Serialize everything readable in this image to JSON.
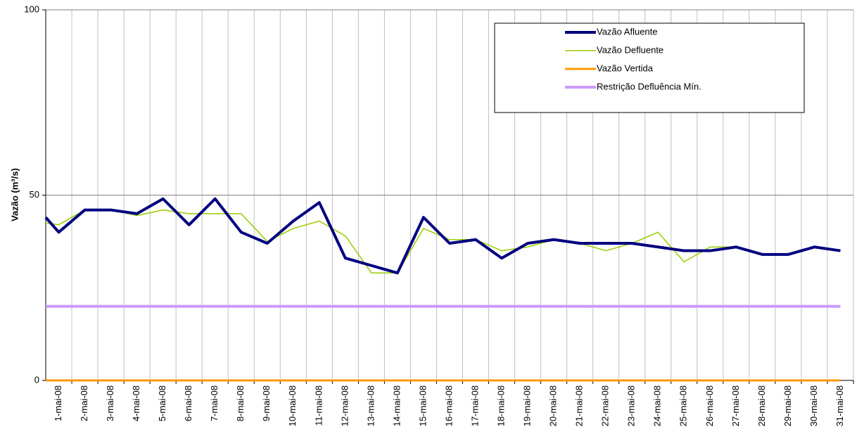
{
  "chart_data": {
    "type": "line",
    "ylabel": "Vazão (m³/s)",
    "categories": [
      null,
      "1-mai-08",
      "2-mai-08",
      "3-mai-08",
      "4-mai-08",
      "5-mai-08",
      "6-mai-08",
      "7-mai-08",
      "8-mai-08",
      "9-mai-08",
      "10-mai-08",
      "11-mai-08",
      "12-mai-08",
      "13-mai-08",
      "14-mai-08",
      "15-mai-08",
      "16-mai-08",
      "17-mai-08",
      "18-mai-08",
      "19-mai-08",
      "20-mai-08",
      "21-mai-08",
      "22-mai-08",
      "23-mai-08",
      "24-mai-08",
      "25-mai-08",
      "26-mai-08",
      "27-mai-08",
      "28-mai-08",
      "29-mai-08",
      "30-mai-08",
      "31-mai-08"
    ],
    "series": [
      {
        "name": "Vazão Afluente",
        "color": "#000080",
        "width": 4,
        "values": [
          44,
          40,
          46,
          46,
          45,
          49,
          42,
          49,
          40,
          37,
          43,
          48,
          33,
          31,
          29,
          44,
          37,
          38,
          33,
          37,
          38,
          37,
          37,
          37,
          36,
          35,
          35,
          36,
          34,
          34,
          36,
          35
        ]
      },
      {
        "name": "Vazão Defluente",
        "color": "#99cc00",
        "width": 1.5,
        "values": [
          42.5,
          42,
          46,
          46,
          44.5,
          46,
          45,
          45,
          45,
          37.5,
          41,
          43,
          39,
          29,
          29,
          41,
          38,
          38,
          35,
          36,
          38,
          37,
          35,
          37,
          40,
          32,
          36,
          36,
          34,
          34,
          36,
          35
        ]
      },
      {
        "name": "Vazão Vertida",
        "color": "#ff9900",
        "width": 3,
        "values": [
          0,
          0,
          0,
          0,
          0,
          0,
          0,
          0,
          0,
          0,
          0,
          0,
          0,
          0,
          0,
          0,
          0,
          0,
          0,
          0,
          0,
          0,
          0,
          0,
          0,
          0,
          0,
          0,
          0,
          0,
          0,
          0
        ]
      },
      {
        "name": "Restrição Defluência Mín.",
        "color": "#cc99ff",
        "width": 4,
        "values": [
          20,
          20,
          20,
          20,
          20,
          20,
          20,
          20,
          20,
          20,
          20,
          20,
          20,
          20,
          20,
          20,
          20,
          20,
          20,
          20,
          20,
          20,
          20,
          20,
          20,
          20,
          20,
          20,
          20,
          20,
          20,
          20
        ]
      }
    ],
    "ylim": [
      0,
      100
    ],
    "yticks": [
      0,
      50,
      100
    ],
    "grid": true,
    "legend": "upper right"
  }
}
